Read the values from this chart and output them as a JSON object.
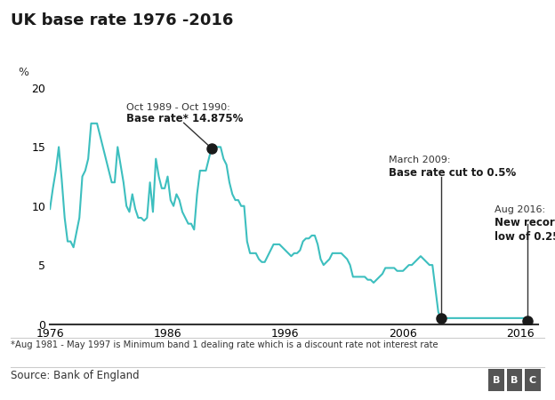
{
  "title": "UK base rate 1976 -2016",
  "ylabel": "%",
  "line_color": "#3dbfbf",
  "annotation_line_color": "#1a1a1a",
  "background_color": "#ffffff",
  "footnote": "*Aug 1981 - May 1997 is Minimum band 1 dealing rate which is a discount rate not interest rate",
  "source": "Source: Bank of England",
  "bbc_text": "BBC",
  "xlim": [
    1976,
    2017.5
  ],
  "ylim": [
    0,
    20
  ],
  "yticks": [
    0,
    5,
    10,
    15,
    20
  ],
  "xticks": [
    1976,
    1986,
    1996,
    2006,
    2016
  ],
  "xticklabels": [
    "1976",
    "1986",
    "1996",
    "2006",
    "2016"
  ],
  "data": [
    [
      1976.0,
      9.75
    ],
    [
      1976.25,
      11.5
    ],
    [
      1976.5,
      13.0
    ],
    [
      1976.75,
      15.0
    ],
    [
      1977.0,
      12.25
    ],
    [
      1977.25,
      9.0
    ],
    [
      1977.5,
      7.0
    ],
    [
      1977.75,
      7.0
    ],
    [
      1978.0,
      6.5
    ],
    [
      1978.25,
      7.75
    ],
    [
      1978.5,
      9.0
    ],
    [
      1978.75,
      12.5
    ],
    [
      1979.0,
      13.0
    ],
    [
      1979.25,
      14.0
    ],
    [
      1979.5,
      17.0
    ],
    [
      1979.75,
      17.0
    ],
    [
      1980.0,
      17.0
    ],
    [
      1980.25,
      16.0
    ],
    [
      1980.5,
      15.0
    ],
    [
      1980.75,
      14.0
    ],
    [
      1981.0,
      13.0
    ],
    [
      1981.25,
      12.0
    ],
    [
      1981.5,
      12.0
    ],
    [
      1981.75,
      15.0
    ],
    [
      1982.0,
      13.5
    ],
    [
      1982.25,
      12.0
    ],
    [
      1982.5,
      10.0
    ],
    [
      1982.75,
      9.5
    ],
    [
      1983.0,
      11.0
    ],
    [
      1983.25,
      9.75
    ],
    [
      1983.5,
      9.0
    ],
    [
      1983.75,
      9.0
    ],
    [
      1984.0,
      8.75
    ],
    [
      1984.25,
      9.0
    ],
    [
      1984.5,
      12.0
    ],
    [
      1984.75,
      9.5
    ],
    [
      1985.0,
      14.0
    ],
    [
      1985.25,
      12.5
    ],
    [
      1985.5,
      11.5
    ],
    [
      1985.75,
      11.5
    ],
    [
      1986.0,
      12.5
    ],
    [
      1986.25,
      10.5
    ],
    [
      1986.5,
      10.0
    ],
    [
      1986.75,
      11.0
    ],
    [
      1987.0,
      10.5
    ],
    [
      1987.25,
      9.5
    ],
    [
      1987.5,
      9.0
    ],
    [
      1987.75,
      8.5
    ],
    [
      1988.0,
      8.5
    ],
    [
      1988.25,
      8.0
    ],
    [
      1988.5,
      11.0
    ],
    [
      1988.75,
      13.0
    ],
    [
      1989.0,
      13.0
    ],
    [
      1989.25,
      13.0
    ],
    [
      1989.5,
      14.0
    ],
    [
      1989.75,
      15.0
    ],
    [
      1990.0,
      15.0
    ],
    [
      1990.25,
      15.0
    ],
    [
      1990.5,
      15.0
    ],
    [
      1990.75,
      14.0
    ],
    [
      1991.0,
      13.5
    ],
    [
      1991.25,
      12.0
    ],
    [
      1991.5,
      11.0
    ],
    [
      1991.75,
      10.5
    ],
    [
      1992.0,
      10.5
    ],
    [
      1992.25,
      10.0
    ],
    [
      1992.5,
      10.0
    ],
    [
      1992.75,
      7.0
    ],
    [
      1993.0,
      6.0
    ],
    [
      1993.25,
      6.0
    ],
    [
      1993.5,
      6.0
    ],
    [
      1993.75,
      5.5
    ],
    [
      1994.0,
      5.25
    ],
    [
      1994.25,
      5.25
    ],
    [
      1994.5,
      5.75
    ],
    [
      1994.75,
      6.25
    ],
    [
      1995.0,
      6.75
    ],
    [
      1995.25,
      6.75
    ],
    [
      1995.5,
      6.75
    ],
    [
      1995.75,
      6.5
    ],
    [
      1996.0,
      6.25
    ],
    [
      1996.25,
      6.0
    ],
    [
      1996.5,
      5.75
    ],
    [
      1996.75,
      6.0
    ],
    [
      1997.0,
      6.0
    ],
    [
      1997.25,
      6.25
    ],
    [
      1997.5,
      7.0
    ],
    [
      1997.75,
      7.25
    ],
    [
      1998.0,
      7.25
    ],
    [
      1998.25,
      7.5
    ],
    [
      1998.5,
      7.5
    ],
    [
      1998.75,
      6.75
    ],
    [
      1999.0,
      5.5
    ],
    [
      1999.25,
      5.0
    ],
    [
      1999.5,
      5.25
    ],
    [
      1999.75,
      5.5
    ],
    [
      2000.0,
      6.0
    ],
    [
      2000.25,
      6.0
    ],
    [
      2000.5,
      6.0
    ],
    [
      2000.75,
      6.0
    ],
    [
      2001.0,
      5.75
    ],
    [
      2001.25,
      5.5
    ],
    [
      2001.5,
      5.0
    ],
    [
      2001.75,
      4.0
    ],
    [
      2002.0,
      4.0
    ],
    [
      2002.25,
      4.0
    ],
    [
      2002.5,
      4.0
    ],
    [
      2002.75,
      4.0
    ],
    [
      2003.0,
      3.75
    ],
    [
      2003.25,
      3.75
    ],
    [
      2003.5,
      3.5
    ],
    [
      2003.75,
      3.75
    ],
    [
      2004.0,
      4.0
    ],
    [
      2004.25,
      4.25
    ],
    [
      2004.5,
      4.75
    ],
    [
      2004.75,
      4.75
    ],
    [
      2005.0,
      4.75
    ],
    [
      2005.25,
      4.75
    ],
    [
      2005.5,
      4.5
    ],
    [
      2005.75,
      4.5
    ],
    [
      2006.0,
      4.5
    ],
    [
      2006.25,
      4.75
    ],
    [
      2006.5,
      5.0
    ],
    [
      2006.75,
      5.0
    ],
    [
      2007.0,
      5.25
    ],
    [
      2007.25,
      5.5
    ],
    [
      2007.5,
      5.75
    ],
    [
      2007.75,
      5.5
    ],
    [
      2008.0,
      5.25
    ],
    [
      2008.25,
      5.0
    ],
    [
      2008.5,
      5.0
    ],
    [
      2008.75,
      3.0
    ],
    [
      2009.0,
      1.0
    ],
    [
      2009.25,
      0.5
    ],
    [
      2009.5,
      0.5
    ],
    [
      2009.75,
      0.5
    ],
    [
      2010.0,
      0.5
    ],
    [
      2010.25,
      0.5
    ],
    [
      2010.5,
      0.5
    ],
    [
      2010.75,
      0.5
    ],
    [
      2011.0,
      0.5
    ],
    [
      2011.25,
      0.5
    ],
    [
      2011.5,
      0.5
    ],
    [
      2011.75,
      0.5
    ],
    [
      2012.0,
      0.5
    ],
    [
      2012.25,
      0.5
    ],
    [
      2012.5,
      0.5
    ],
    [
      2012.75,
      0.5
    ],
    [
      2013.0,
      0.5
    ],
    [
      2013.25,
      0.5
    ],
    [
      2013.5,
      0.5
    ],
    [
      2013.75,
      0.5
    ],
    [
      2014.0,
      0.5
    ],
    [
      2014.25,
      0.5
    ],
    [
      2014.5,
      0.5
    ],
    [
      2014.75,
      0.5
    ],
    [
      2015.0,
      0.5
    ],
    [
      2015.25,
      0.5
    ],
    [
      2015.5,
      0.5
    ],
    [
      2015.75,
      0.5
    ],
    [
      2016.0,
      0.5
    ],
    [
      2016.25,
      0.5
    ],
    [
      2016.5,
      0.5
    ],
    [
      2016.6,
      0.25
    ]
  ]
}
